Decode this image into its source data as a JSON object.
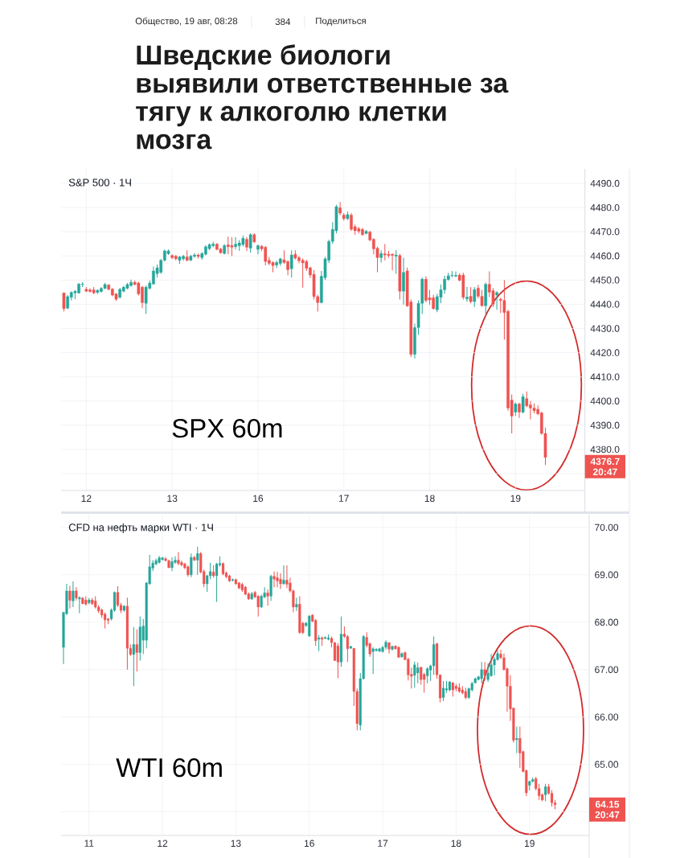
{
  "chart_data": [
    {
      "type": "candlestick",
      "title": "S&P 500 · 1Ч",
      "annotations": [
        "Общество, 19 авг, 08:28",
        "384",
        "Поделиться",
        "Шведские биологи выявили ответственные за тягу к алкоголю клетки мозга",
        "SPX 60m",
        "4376.7",
        "20:47"
      ],
      "categories": [
        null,
        null,
        null,
        null,
        null,
        null,
        "12",
        null,
        null,
        null,
        null,
        null,
        null,
        null,
        null,
        null,
        null,
        null,
        null,
        null,
        null,
        null,
        null,
        null,
        null,
        null,
        null,
        null,
        null,
        "13",
        null,
        null,
        null,
        null,
        null,
        null,
        null,
        null,
        null,
        null,
        null,
        null,
        null,
        null,
        null,
        null,
        null,
        null,
        null,
        null,
        null,
        null,
        "16",
        null,
        null,
        null,
        null,
        null,
        null,
        null,
        null,
        null,
        null,
        null,
        null,
        null,
        null,
        null,
        null,
        null,
        null,
        null,
        null,
        null,
        null,
        "17",
        null,
        null,
        null,
        null,
        null,
        null,
        null,
        null,
        null,
        null,
        null,
        null,
        null,
        null,
        null,
        null,
        null,
        null,
        null,
        null,
        null,
        null,
        "18",
        null,
        null,
        null,
        null,
        null,
        null,
        null,
        null,
        null,
        null,
        null,
        null,
        null,
        null,
        null,
        null,
        null,
        null,
        null,
        null,
        null,
        null,
        "19",
        null,
        null,
        null,
        null,
        null,
        null,
        null,
        null
      ],
      "ohlc": [
        [
          4444.7,
          4444.9,
          4437.1,
          4438.2
        ],
        [
          4438.4,
          4443.8,
          4438.0,
          4443.2
        ],
        [
          4442.9,
          4445.4,
          4441.6,
          4444.9
        ],
        [
          4444.7,
          4446.0,
          4442.1,
          4445.4
        ],
        [
          4444.7,
          4448.8,
          4444.3,
          4448.4
        ],
        [
          4448.2,
          4449.1,
          4447.1,
          4448.4
        ],
        [
          4446.2,
          4447.1,
          4445.1,
          4445.4
        ],
        [
          4446.0,
          4446.6,
          4444.9,
          4445.3
        ],
        [
          4446.0,
          4447.1,
          4444.2,
          4444.7
        ],
        [
          4444.9,
          4446.2,
          4444.3,
          4445.8
        ],
        [
          4445.2,
          4447.1,
          4445.0,
          4446.6
        ],
        [
          4446.6,
          4448.9,
          4446.2,
          4448.2
        ],
        [
          4448.0,
          4448.4,
          4445.8,
          4446.2
        ],
        [
          4446.3,
          4446.7,
          4443.3,
          4443.8
        ],
        [
          4444.3,
          4444.6,
          4441.4,
          4442.1
        ],
        [
          4442.9,
          4446.8,
          4442.4,
          4446.2
        ],
        [
          4445.4,
          4447.6,
          4445.0,
          4447.1
        ],
        [
          4446.6,
          4448.8,
          4446.2,
          4448.2
        ],
        [
          4447.7,
          4450.2,
          4447.3,
          4449.1
        ],
        [
          4449.1,
          4449.9,
          4447.8,
          4448.2
        ],
        [
          4448.8,
          4449.3,
          4443.6,
          4444.3
        ],
        [
          4447.1,
          4447.6,
          4438.4,
          4440.7
        ],
        [
          4440.4,
          4447.7,
          4436.0,
          4447.1
        ],
        [
          4446.6,
          4449.9,
          4446.1,
          4448.8
        ],
        [
          4448.4,
          4455.6,
          4448.0,
          4453.8
        ],
        [
          4452.7,
          4456.4,
          4451.1,
          4455.1
        ],
        [
          4453.2,
          4458.8,
          4452.6,
          4458.2
        ],
        [
          4458.2,
          4462.7,
          4457.7,
          4462.1
        ],
        [
          4460.9,
          4462.7,
          4460.4,
          4462.1
        ],
        [
          4460.2,
          4460.7,
          4458.7,
          4459.3
        ],
        [
          4459.9,
          4460.4,
          4458.2,
          4458.8
        ],
        [
          4458.2,
          4460.0,
          4456.7,
          4459.6
        ],
        [
          4458.8,
          4460.4,
          4458.0,
          4459.9
        ],
        [
          4459.6,
          4462.3,
          4457.8,
          4458.2
        ],
        [
          4458.2,
          4460.4,
          4457.9,
          4459.9
        ],
        [
          4459.8,
          4461.2,
          4459.3,
          4460.4
        ],
        [
          4460.4,
          4461.0,
          4458.9,
          4459.8
        ],
        [
          4459.3,
          4461.6,
          4458.4,
          4461.0
        ],
        [
          4460.7,
          4464.4,
          4460.2,
          4463.8
        ],
        [
          4463.0,
          4465.2,
          4462.4,
          4464.7
        ],
        [
          4464.2,
          4465.8,
          4463.6,
          4464.9
        ],
        [
          4464.9,
          4465.3,
          4462.3,
          4462.7
        ],
        [
          4462.9,
          4463.3,
          4460.9,
          4461.3
        ],
        [
          4461.0,
          4464.9,
          4460.6,
          4464.3
        ],
        [
          4464.6,
          4468.0,
          4460.7,
          4463.8
        ],
        [
          4464.3,
          4467.7,
          4459.9,
          4463.6
        ],
        [
          4463.8,
          4467.7,
          4462.7,
          4464.9
        ],
        [
          4464.2,
          4466.6,
          4462.1,
          4465.4
        ],
        [
          4464.7,
          4468.4,
          4463.9,
          4467.3
        ],
        [
          4466.9,
          4467.8,
          4462.1,
          4463.6
        ],
        [
          4463.2,
          4469.4,
          4461.3,
          4468.8
        ],
        [
          4468.8,
          4469.4,
          4465.3,
          4465.8
        ],
        [
          4462.7,
          4464.7,
          4460.7,
          4464.3
        ],
        [
          4464.0,
          4464.6,
          4462.0,
          4462.9
        ],
        [
          4463.6,
          4464.2,
          4456.1,
          4457.7
        ],
        [
          4458.2,
          4459.6,
          4456.2,
          4456.9
        ],
        [
          4457.3,
          4457.8,
          4453.3,
          4456.0
        ],
        [
          4456.2,
          4458.0,
          4455.0,
          4457.3
        ],
        [
          4456.9,
          4459.3,
          4455.9,
          4458.8
        ],
        [
          4458.4,
          4462.3,
          4456.7,
          4457.3
        ],
        [
          4457.7,
          4458.2,
          4452.0,
          4454.3
        ],
        [
          4454.7,
          4462.3,
          4451.0,
          4460.4
        ],
        [
          4460.7,
          4462.3,
          4458.5,
          4459.1
        ],
        [
          4459.3,
          4460.0,
          4456.9,
          4458.0
        ],
        [
          4458.2,
          4459.0,
          4446.9,
          4457.1
        ],
        [
          4457.7,
          4458.4,
          4453.8,
          4454.9
        ],
        [
          4455.1,
          4455.6,
          4450.9,
          4452.1
        ],
        [
          4452.4,
          4454.2,
          4442.0,
          4443.2
        ],
        [
          4443.2,
          4444.0,
          4437.0,
          4440.7
        ],
        [
          4440.7,
          4453.8,
          4440.4,
          4451.6
        ],
        [
          4451.0,
          4459.6,
          4450.0,
          4458.8
        ],
        [
          4458.2,
          4466.7,
          4457.1,
          4466.0
        ],
        [
          4466.0,
          4474.0,
          4465.0,
          4471.0
        ],
        [
          4470.4,
          4481.1,
          4469.3,
          4480.4
        ],
        [
          4479.9,
          4482.3,
          4476.8,
          4477.7
        ],
        [
          4476.9,
          4477.7,
          4474.6,
          4475.4
        ],
        [
          4475.4,
          4478.4,
          4474.8,
          4477.1
        ],
        [
          4476.9,
          4477.7,
          4470.4,
          4471.0
        ],
        [
          4472.1,
          4473.0,
          4468.7,
          4470.4
        ],
        [
          4471.3,
          4472.0,
          4469.3,
          4470.2
        ],
        [
          4471.0,
          4471.6,
          4468.3,
          4468.8
        ],
        [
          4469.3,
          4470.7,
          4468.9,
          4470.2
        ],
        [
          4469.9,
          4470.4,
          4466.1,
          4466.6
        ],
        [
          4466.9,
          4467.3,
          4460.7,
          4462.9
        ],
        [
          4463.2,
          4463.8,
          4453.3,
          4459.3
        ],
        [
          4459.3,
          4462.3,
          4457.3,
          4461.0
        ],
        [
          4460.9,
          4464.9,
          4458.2,
          4460.4
        ],
        [
          4460.7,
          4462.1,
          4459.3,
          4460.2
        ],
        [
          4460.7,
          4461.1,
          4454.0,
          4460.2
        ],
        [
          4459.9,
          4462.4,
          4452.6,
          4460.4
        ],
        [
          4460.2,
          4460.8,
          4442.0,
          4445.4
        ],
        [
          4445.4,
          4459.3,
          4439.9,
          4453.2
        ],
        [
          4453.8,
          4455.2,
          4439.0,
          4439.3
        ],
        [
          4441.0,
          4442.0,
          4418.2,
          4419.3
        ],
        [
          4419.3,
          4432.0,
          4417.6,
          4430.4
        ],
        [
          4430.4,
          4441.6,
          4427.3,
          4440.4
        ],
        [
          4440.4,
          4451.0,
          4436.0,
          4450.4
        ],
        [
          4450.4,
          4451.6,
          4440.8,
          4441.6
        ],
        [
          4442.7,
          4446.0,
          4439.8,
          4441.8
        ],
        [
          4442.7,
          4444.0,
          4437.8,
          4438.2
        ],
        [
          4437.7,
          4444.4,
          4436.7,
          4443.2
        ],
        [
          4442.9,
          4448.2,
          4440.5,
          4446.0
        ],
        [
          4446.0,
          4451.8,
          4444.4,
          4450.4
        ],
        [
          4450.2,
          4453.0,
          4449.8,
          4451.8
        ],
        [
          4451.8,
          4453.8,
          4451.1,
          4452.0
        ],
        [
          4451.6,
          4453.6,
          4451.3,
          4452.0
        ],
        [
          4452.1,
          4452.9,
          4449.5,
          4449.9
        ],
        [
          4452.1,
          4453.0,
          4442.0,
          4442.9
        ],
        [
          4442.2,
          4447.2,
          4441.0,
          4443.0
        ],
        [
          4443.3,
          4447.1,
          4440.4,
          4441.1
        ],
        [
          4441.1,
          4447.1,
          4438.9,
          4446.1
        ],
        [
          4446.7,
          4448.0,
          4442.5,
          4443.3
        ],
        [
          4443.3,
          4446.0,
          4439.0,
          4439.4
        ],
        [
          4439.4,
          4449.0,
          4435.2,
          4448.3
        ],
        [
          4448.3,
          4453.6,
          4443.0,
          4445.0
        ],
        [
          4445.6,
          4446.7,
          4438.9,
          4440.0
        ],
        [
          4443.8,
          4445.4,
          4437.7,
          4444.9
        ],
        [
          4442.1,
          4442.7,
          4436.4,
          4441.6
        ],
        [
          4441.6,
          4450.0,
          4425.4,
          4436.6
        ],
        [
          4437.1,
          4437.7,
          4396.0,
          4397.1
        ],
        [
          4400.4,
          4402.7,
          4386.6,
          4393.8
        ],
        [
          4395.4,
          4399.4,
          4393.8,
          4398.8
        ],
        [
          4398.8,
          4399.3,
          4393.0,
          4395.4
        ],
        [
          4395.4,
          4403.0,
          4394.9,
          4401.8
        ],
        [
          4401.0,
          4404.0,
          4397.4,
          4398.0
        ],
        [
          4398.4,
          4400.0,
          4392.4,
          4397.1
        ],
        [
          4397.1,
          4399.0,
          4394.9,
          4396.0
        ],
        [
          4396.6,
          4398.2,
          4394.2,
          4394.7
        ],
        [
          4395.1,
          4395.6,
          4386.0,
          4386.6
        ],
        [
          4386.6,
          4389.0,
          4373.6,
          4376.7
        ]
      ],
      "colors": [
        "#ef5350",
        "#26a69a",
        "#26a69a",
        "#26a69a",
        "#26a69a",
        "#26a69a",
        "#ef5350",
        "#ef5350",
        "#ef5350",
        "#26a69a",
        "#26a69a",
        "#26a69a",
        "#ef5350",
        "#ef5350",
        "#ef5350",
        "#26a69a",
        "#26a69a",
        "#26a69a",
        "#26a69a",
        "#ef5350",
        "#ef5350",
        "#ef5350",
        "#26a69a",
        "#26a69a",
        "#26a69a",
        "#26a69a",
        "#26a69a",
        "#26a69a",
        "#26a69a",
        "#ef5350",
        "#ef5350",
        "#26a69a",
        "#26a69a",
        "#ef5350",
        "#26a69a",
        "#26a69a",
        "#ef5350",
        "#26a69a",
        "#26a69a",
        "#26a69a",
        "#26a69a",
        "#ef5350",
        "#ef5350",
        "#26a69a",
        "#ef5350",
        "#ef5350",
        "#26a69a",
        "#26a69a",
        "#26a69a",
        "#ef5350",
        "#26a69a",
        "#ef5350",
        "#26a69a",
        "#ef5350",
        "#ef5350",
        "#ef5350",
        "#ef5350",
        "#26a69a",
        "#26a69a",
        "#ef5350",
        "#ef5350",
        "#26a69a",
        "#ef5350",
        "#ef5350",
        "#ef5350",
        "#ef5350",
        "#ef5350",
        "#ef5350",
        "#ef5350",
        "#26a69a",
        "#26a69a",
        "#26a69a",
        "#26a69a",
        "#26a69a",
        "#ef5350",
        "#ef5350",
        "#26a69a",
        "#ef5350",
        "#ef5350",
        "#ef5350",
        "#ef5350",
        "#26a69a",
        "#ef5350",
        "#ef5350",
        "#ef5350",
        "#26a69a",
        "#ef5350",
        "#ef5350",
        "#ef5350",
        "#26a69a",
        "#ef5350",
        "#26a69a",
        "#ef5350",
        "#ef5350",
        "#26a69a",
        "#26a69a",
        "#26a69a",
        "#ef5350",
        "#ef5350",
        "#ef5350",
        "#26a69a",
        "#26a69a",
        "#26a69a",
        "#26a69a",
        "#26a69a",
        "#26a69a",
        "#ef5350",
        "#ef5350",
        "#26a69a",
        "#ef5350",
        "#26a69a",
        "#ef5350",
        "#ef5350",
        "#26a69a",
        "#ef5350",
        "#ef5350",
        "#26a69a",
        "#ef5350",
        "#ef5350",
        "#ef5350",
        "#ef5350",
        "#26a69a",
        "#ef5350",
        "#26a69a",
        "#ef5350",
        "#ef5350",
        "#ef5350",
        "#ef5350",
        "#ef5350",
        "#ef5350"
      ],
      "ylim": [
        4363,
        4496
      ],
      "yticks": [
        {
          "value": 4370,
          "label": null
        },
        {
          "value": 4380,
          "label": "4380.0"
        },
        {
          "value": 4390,
          "label": "4390.0"
        },
        {
          "value": 4400,
          "label": "4400.0"
        },
        {
          "value": 4410,
          "label": "4410.0"
        },
        {
          "value": 4420,
          "label": "4420.0"
        },
        {
          "value": 4430,
          "label": "4430.0"
        },
        {
          "value": 4440,
          "label": "4440.0"
        },
        {
          "value": 4450,
          "label": "4450.0"
        },
        {
          "value": 4460,
          "label": "4460.0"
        },
        {
          "value": 4470,
          "label": "4470.0"
        },
        {
          "value": 4480,
          "label": "4480.0"
        },
        {
          "value": 4490,
          "label": "4490.0"
        }
      ],
      "grid": true
    },
    {
      "type": "candlestick",
      "title": "CFD на нефть марки WTI · 1Ч",
      "annotations": [
        "WTI 60m",
        "64.15",
        "20:47"
      ],
      "categories": [
        null,
        null,
        null,
        null,
        null,
        null,
        null,
        null,
        "11",
        null,
        null,
        null,
        null,
        null,
        null,
        null,
        null,
        null,
        null,
        null,
        null,
        null,
        null,
        null,
        null,
        null,
        null,
        null,
        null,
        null,
        null,
        "12",
        null,
        null,
        null,
        null,
        null,
        null,
        null,
        null,
        null,
        null,
        null,
        null,
        null,
        null,
        null,
        null,
        null,
        null,
        null,
        null,
        null,
        null,
        "13",
        null,
        null,
        null,
        null,
        null,
        null,
        null,
        null,
        null,
        null,
        null,
        null,
        null,
        null,
        null,
        null,
        null,
        null,
        null,
        null,
        null,
        null,
        "16",
        null,
        null,
        null,
        null,
        null,
        null,
        null,
        null,
        null,
        null,
        null,
        null,
        null,
        null,
        null,
        null,
        null,
        null,
        null,
        null,
        null,
        null,
        "17",
        null,
        null,
        null,
        null,
        null,
        null,
        null,
        null,
        null,
        null,
        null,
        null,
        null,
        null,
        null,
        null,
        null,
        null,
        null,
        null,
        null,
        null,
        "18",
        null,
        null,
        null,
        null,
        null,
        null,
        null,
        null,
        null,
        null,
        null,
        null,
        null,
        null,
        null,
        null,
        null,
        null,
        null,
        null,
        null,
        null,
        "19",
        null,
        null,
        null,
        null,
        null,
        null,
        null,
        null
      ],
      "ohlc": [
        [
          67.47,
          68.21,
          67.12,
          68.21
        ],
        [
          68.18,
          68.81,
          68.15,
          68.66
        ],
        [
          68.66,
          68.77,
          68.29,
          68.46
        ],
        [
          68.45,
          68.86,
          68.32,
          68.66
        ],
        [
          68.66,
          68.74,
          68.46,
          68.51
        ],
        [
          68.49,
          68.55,
          68.19,
          68.52
        ],
        [
          68.51,
          68.53,
          68.38,
          68.39
        ],
        [
          68.47,
          68.55,
          68.35,
          68.38
        ],
        [
          68.41,
          68.51,
          68.38,
          68.47
        ],
        [
          68.47,
          68.51,
          68.36,
          68.39
        ],
        [
          68.45,
          68.55,
          68.29,
          68.32
        ],
        [
          68.32,
          68.36,
          68.19,
          68.24
        ],
        [
          68.26,
          68.29,
          68.09,
          68.15
        ],
        [
          68.17,
          68.21,
          67.87,
          68.05
        ],
        [
          68.07,
          68.09,
          67.96,
          68.04
        ],
        [
          68.07,
          68.29,
          68.04,
          68.26
        ],
        [
          68.25,
          68.65,
          68.22,
          68.63
        ],
        [
          68.63,
          68.76,
          68.32,
          68.36
        ],
        [
          68.36,
          68.41,
          68.19,
          68.25
        ],
        [
          68.25,
          68.36,
          68.22,
          68.34
        ],
        [
          68.34,
          68.52,
          67.0,
          67.45
        ],
        [
          67.45,
          67.53,
          67.29,
          67.32
        ],
        [
          67.32,
          67.9,
          66.65,
          67.53
        ],
        [
          67.53,
          67.85,
          66.96,
          67.36
        ],
        [
          67.36,
          68.12,
          67.19,
          67.9
        ],
        [
          67.62,
          68.07,
          67.33,
          67.92
        ],
        [
          67.62,
          68.85,
          67.45,
          68.83
        ],
        [
          68.81,
          69.42,
          68.79,
          69.17
        ],
        [
          69.14,
          69.31,
          69.08,
          69.25
        ],
        [
          69.23,
          69.34,
          69.2,
          69.3
        ],
        [
          69.26,
          69.4,
          69.24,
          69.36
        ],
        [
          69.32,
          69.38,
          69.3,
          69.36
        ],
        [
          69.34,
          69.38,
          69.28,
          69.3
        ],
        [
          69.3,
          69.32,
          69.14,
          69.15
        ],
        [
          69.15,
          69.37,
          69.08,
          69.28
        ],
        [
          69.26,
          69.39,
          69.23,
          69.31
        ],
        [
          69.31,
          69.48,
          69.2,
          69.24
        ],
        [
          69.26,
          69.3,
          69.18,
          69.21
        ],
        [
          69.23,
          69.25,
          69.12,
          69.15
        ],
        [
          69.17,
          69.2,
          68.96,
          69.0
        ],
        [
          69.0,
          69.45,
          68.95,
          69.37
        ],
        [
          69.37,
          69.4,
          69.29,
          69.31
        ],
        [
          69.31,
          69.59,
          69.0,
          69.45
        ],
        [
          69.45,
          69.48,
          69.03,
          69.06
        ],
        [
          69.07,
          69.11,
          68.74,
          68.81
        ],
        [
          68.81,
          69.0,
          68.64,
          68.98
        ],
        [
          68.98,
          69.25,
          68.91,
          69.07
        ],
        [
          69.06,
          69.2,
          68.94,
          68.98
        ],
        [
          68.98,
          69.25,
          68.43,
          69.23
        ],
        [
          69.21,
          69.39,
          69.17,
          69.24
        ],
        [
          69.24,
          69.26,
          68.99,
          69.02
        ],
        [
          69.04,
          69.07,
          68.93,
          68.96
        ],
        [
          68.98,
          69.0,
          68.85,
          68.87
        ],
        [
          68.88,
          68.92,
          68.86,
          68.9
        ],
        [
          68.9,
          68.92,
          68.79,
          68.81
        ],
        [
          68.83,
          68.85,
          68.7,
          68.72
        ],
        [
          68.8,
          68.83,
          68.64,
          68.68
        ],
        [
          68.74,
          68.77,
          68.57,
          68.59
        ],
        [
          68.6,
          68.63,
          68.47,
          68.49
        ],
        [
          68.49,
          68.64,
          68.47,
          68.6
        ],
        [
          68.63,
          68.66,
          68.51,
          68.53
        ],
        [
          68.55,
          68.57,
          68.12,
          68.32
        ],
        [
          68.32,
          68.58,
          68.3,
          68.55
        ],
        [
          68.53,
          68.74,
          68.51,
          68.62
        ],
        [
          68.62,
          68.69,
          68.35,
          68.55
        ],
        [
          68.55,
          69.0,
          68.45,
          68.97
        ],
        [
          68.97,
          69.07,
          68.74,
          68.91
        ],
        [
          68.94,
          69.06,
          68.74,
          68.87
        ],
        [
          68.91,
          69.03,
          68.7,
          68.81
        ],
        [
          68.81,
          69.2,
          68.79,
          68.89
        ],
        [
          68.89,
          69.2,
          68.72,
          68.8
        ],
        [
          68.83,
          68.94,
          68.63,
          68.66
        ],
        [
          68.66,
          68.69,
          68.21,
          68.32
        ],
        [
          68.32,
          68.52,
          68.24,
          68.38
        ],
        [
          68.38,
          68.55,
          67.76,
          67.78
        ],
        [
          67.98,
          68.01,
          67.75,
          67.78
        ],
        [
          67.93,
          68.01,
          67.9,
          67.98
        ],
        [
          67.71,
          68.15,
          67.69,
          68.13
        ],
        [
          68.15,
          68.17,
          68.0,
          68.02
        ],
        [
          68.04,
          68.07,
          67.5,
          67.61
        ],
        [
          67.64,
          67.73,
          67.39,
          67.67
        ],
        [
          67.67,
          67.7,
          67.5,
          67.64
        ],
        [
          67.66,
          67.7,
          67.64,
          67.68
        ],
        [
          67.64,
          67.74,
          67.62,
          67.67
        ],
        [
          67.66,
          67.7,
          67.47,
          67.57
        ],
        [
          67.57,
          67.58,
          67.19,
          67.19
        ],
        [
          67.5,
          67.56,
          66.82,
          67.16
        ],
        [
          67.16,
          68.12,
          67.06,
          67.75
        ],
        [
          67.75,
          67.91,
          67.67,
          67.7
        ],
        [
          67.7,
          67.73,
          67.16,
          67.44
        ],
        [
          67.45,
          67.5,
          67.44,
          67.49
        ],
        [
          67.45,
          67.45,
          66.23,
          66.54
        ],
        [
          66.54,
          66.6,
          65.72,
          65.86
        ],
        [
          65.83,
          66.93,
          65.72,
          66.81
        ],
        [
          66.81,
          67.73,
          66.79,
          67.7
        ],
        [
          67.68,
          67.79,
          67.47,
          67.51
        ],
        [
          67.55,
          67.57,
          67.27,
          67.33
        ],
        [
          67.38,
          67.47,
          66.91,
          67.44
        ],
        [
          67.4,
          67.45,
          67.38,
          67.43
        ],
        [
          67.39,
          67.46,
          67.37,
          67.44
        ],
        [
          67.38,
          67.5,
          67.36,
          67.47
        ],
        [
          67.47,
          67.62,
          67.42,
          67.58
        ],
        [
          67.57,
          67.58,
          67.34,
          67.43
        ],
        [
          67.43,
          67.51,
          67.4,
          67.49
        ],
        [
          67.5,
          67.51,
          67.42,
          67.44
        ],
        [
          67.47,
          67.49,
          67.25,
          67.26
        ],
        [
          67.27,
          67.36,
          67.25,
          67.34
        ],
        [
          67.36,
          67.38,
          67.2,
          67.21
        ],
        [
          67.22,
          67.25,
          66.77,
          66.89
        ],
        [
          66.9,
          67.04,
          66.6,
          66.86
        ],
        [
          66.88,
          67.17,
          66.62,
          67.1
        ],
        [
          66.93,
          67.15,
          66.71,
          67.04
        ],
        [
          67.05,
          67.06,
          66.68,
          66.79
        ],
        [
          66.9,
          66.93,
          66.51,
          66.79
        ],
        [
          66.87,
          67.05,
          66.71,
          67.02
        ],
        [
          66.99,
          67.1,
          66.76,
          67.08
        ],
        [
          67.08,
          67.7,
          66.89,
          67.53
        ],
        [
          67.55,
          67.56,
          66.81,
          66.89
        ],
        [
          66.89,
          66.89,
          66.31,
          66.4
        ],
        [
          66.41,
          66.76,
          66.34,
          66.61
        ],
        [
          66.57,
          66.76,
          66.51,
          66.6
        ],
        [
          66.57,
          66.76,
          66.54,
          66.74
        ],
        [
          66.72,
          66.74,
          66.43,
          66.57
        ],
        [
          66.65,
          66.7,
          66.54,
          66.6
        ],
        [
          66.62,
          66.71,
          66.51,
          66.54
        ],
        [
          66.57,
          66.65,
          66.48,
          66.51
        ],
        [
          66.54,
          66.62,
          66.37,
          66.41
        ],
        [
          66.41,
          66.62,
          66.38,
          66.6
        ],
        [
          66.57,
          66.74,
          66.54,
          66.71
        ],
        [
          66.72,
          66.83,
          66.71,
          66.81
        ],
        [
          66.79,
          66.87,
          66.77,
          66.85
        ],
        [
          66.81,
          67.16,
          66.71,
          67.0
        ],
        [
          67.0,
          67.16,
          66.76,
          66.88
        ],
        [
          66.79,
          67.13,
          66.74,
          66.93
        ],
        [
          66.87,
          67.33,
          66.85,
          67.1
        ],
        [
          67.1,
          67.27,
          66.88,
          67.22
        ],
        [
          67.21,
          67.42,
          67.19,
          67.34
        ],
        [
          67.33,
          67.42,
          67.22,
          67.25
        ],
        [
          67.25,
          67.34,
          66.98,
          67.0
        ],
        [
          67.02,
          67.04,
          66.11,
          66.65
        ],
        [
          66.65,
          66.88,
          65.92,
          66.17
        ],
        [
          66.19,
          66.2,
          65.46,
          65.51
        ],
        [
          65.52,
          65.8,
          65.24,
          65.55
        ],
        [
          65.55,
          65.8,
          64.93,
          65.24
        ],
        [
          65.27,
          65.29,
          64.83,
          64.85
        ],
        [
          64.87,
          64.89,
          64.33,
          64.4
        ],
        [
          64.56,
          64.66,
          64.45,
          64.64
        ],
        [
          64.64,
          64.72,
          64.62,
          64.68
        ],
        [
          64.7,
          64.74,
          64.45,
          64.49
        ],
        [
          64.49,
          64.59,
          64.25,
          64.34
        ],
        [
          64.36,
          64.39,
          64.22,
          64.25
        ],
        [
          64.36,
          64.59,
          64.22,
          64.53
        ],
        [
          64.53,
          64.59,
          64.36,
          64.39
        ],
        [
          64.39,
          64.46,
          64.11,
          64.19
        ],
        [
          64.19,
          64.25,
          64.05,
          64.15
        ]
      ],
      "colors": [
        "#26a69a",
        "#26a69a",
        "#ef5350",
        "#26a69a",
        "#ef5350",
        "#26a69a",
        "#ef5350",
        "#ef5350",
        "#26a69a",
        "#ef5350",
        "#ef5350",
        "#ef5350",
        "#ef5350",
        "#ef5350",
        "#ef5350",
        "#26a69a",
        "#26a69a",
        "#ef5350",
        "#ef5350",
        "#26a69a",
        "#ef5350",
        "#ef5350",
        "#26a69a",
        "#ef5350",
        "#26a69a",
        "#26a69a",
        "#26a69a",
        "#26a69a",
        "#26a69a",
        "#26a69a",
        "#26a69a",
        "#26a69a",
        "#ef5350",
        "#ef5350",
        "#26a69a",
        "#26a69a",
        "#ef5350",
        "#ef5350",
        "#ef5350",
        "#ef5350",
        "#26a69a",
        "#ef5350",
        "#26a69a",
        "#ef5350",
        "#ef5350",
        "#26a69a",
        "#26a69a",
        "#ef5350",
        "#26a69a",
        "#26a69a",
        "#ef5350",
        "#ef5350",
        "#ef5350",
        "#26a69a",
        "#ef5350",
        "#ef5350",
        "#ef5350",
        "#ef5350",
        "#ef5350",
        "#26a69a",
        "#ef5350",
        "#ef5350",
        "#26a69a",
        "#26a69a",
        "#ef5350",
        "#26a69a",
        "#ef5350",
        "#ef5350",
        "#ef5350",
        "#26a69a",
        "#ef5350",
        "#ef5350",
        "#ef5350",
        "#26a69a",
        "#ef5350",
        "#ef5350",
        "#26a69a",
        "#26a69a",
        "#ef5350",
        "#ef5350",
        "#26a69a",
        "#ef5350",
        "#26a69a",
        "#26a69a",
        "#ef5350",
        "#ef5350",
        "#ef5350",
        "#26a69a",
        "#ef5350",
        "#ef5350",
        "#26a69a",
        "#ef5350",
        "#ef5350",
        "#26a69a",
        "#26a69a",
        "#ef5350",
        "#ef5350",
        "#26a69a",
        "#26a69a",
        "#26a69a",
        "#26a69a",
        "#26a69a",
        "#ef5350",
        "#26a69a",
        "#ef5350",
        "#ef5350",
        "#26a69a",
        "#ef5350",
        "#ef5350",
        "#ef5350",
        "#26a69a",
        "#26a69a",
        "#ef5350",
        "#ef5350",
        "#26a69a",
        "#26a69a",
        "#26a69a",
        "#ef5350",
        "#ef5350",
        "#26a69a",
        "#26a69a",
        "#26a69a",
        "#ef5350",
        "#ef5350",
        "#ef5350",
        "#ef5350",
        "#ef5350",
        "#26a69a",
        "#26a69a",
        "#26a69a",
        "#26a69a",
        "#26a69a",
        "#ef5350",
        "#26a69a",
        "#26a69a",
        "#26a69a",
        "#26a69a",
        "#ef5350",
        "#ef5350",
        "#ef5350",
        "#ef5350",
        "#ef5350",
        "#26a69a",
        "#ef5350",
        "#ef5350",
        "#ef5350",
        "#26a69a",
        "#26a69a",
        "#ef5350",
        "#ef5350",
        "#ef5350",
        "#26a69a",
        "#ef5350",
        "#ef5350",
        "#ef5350"
      ],
      "ylim": [
        63.5,
        70.27
      ],
      "yticks": [
        {
          "value": 64,
          "label": null
        },
        {
          "value": 65,
          "label": "65.00"
        },
        {
          "value": 66,
          "label": "66.00"
        },
        {
          "value": 67,
          "label": "67.00"
        },
        {
          "value": 68,
          "label": "68.00"
        },
        {
          "value": 69,
          "label": "69.00"
        },
        {
          "value": 70,
          "label": "70.00"
        }
      ],
      "grid": true
    }
  ]
}
